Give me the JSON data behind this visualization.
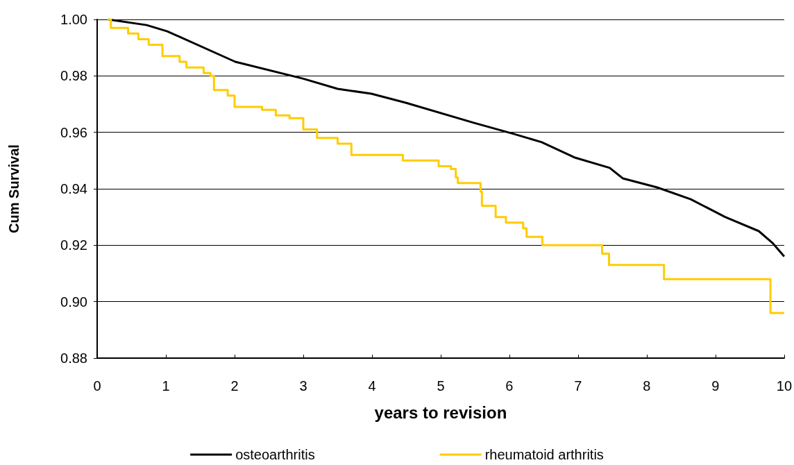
{
  "chart_data": {
    "type": "step",
    "xlabel": "years to revision",
    "ylabel": "Cum Survival",
    "xlim": [
      0,
      10
    ],
    "xticks": [
      0,
      1,
      2,
      3,
      4,
      5,
      6,
      7,
      8,
      9,
      10
    ],
    "ylim": [
      0.88,
      1.0
    ],
    "yticks": [
      {
        "value": 0.88,
        "label": "0.88"
      },
      {
        "value": 0.9,
        "label": "0.90"
      },
      {
        "value": 0.92,
        "label": "0.92"
      },
      {
        "value": 0.94,
        "label": "0.94"
      },
      {
        "value": 0.96,
        "label": "0.96"
      },
      {
        "value": 0.98,
        "label": "0.98"
      },
      {
        "value": 1.0,
        "label": "1.00"
      }
    ],
    "grid": "y",
    "legend": "bottom",
    "marker": "none",
    "line_style": "solid",
    "series": [
      {
        "name": "osteoarthritis",
        "type": "line",
        "color": "#000000",
        "x": [
          0.16,
          0.72,
          1.02,
          2.01,
          3.0,
          3.5,
          3.99,
          4.49,
          5.48,
          6.07,
          6.47,
          6.96,
          7.46,
          7.65,
          8.15,
          8.64,
          9.14,
          9.63,
          9.83,
          10.0
        ],
        "values": [
          1.0,
          0.998,
          0.9958,
          0.985,
          0.979,
          0.9754,
          0.9737,
          0.9705,
          0.9634,
          0.9594,
          0.9565,
          0.951,
          0.9474,
          0.9437,
          0.9405,
          0.9363,
          0.93,
          0.925,
          0.9208,
          0.916
        ]
      },
      {
        "name": "rheumatoid arthritis",
        "color": "#ffcc00",
        "x": [
          0.15,
          0.2,
          0.45,
          0.6,
          0.75,
          0.95,
          1.2,
          1.3,
          1.55,
          1.65,
          1.7,
          1.9,
          2.0,
          2.4,
          2.6,
          2.8,
          3.0,
          3.2,
          3.5,
          3.7,
          4.45,
          4.97,
          5.15,
          5.22,
          5.25,
          5.58,
          5.6,
          5.8,
          5.95,
          6.2,
          6.25,
          6.48,
          7.35,
          7.45,
          8.25,
          9.8,
          10.0
        ],
        "values": [
          1.0,
          0.997,
          0.995,
          0.993,
          0.991,
          0.987,
          0.985,
          0.983,
          0.981,
          0.98,
          0.975,
          0.973,
          0.969,
          0.968,
          0.966,
          0.965,
          0.961,
          0.958,
          0.956,
          0.952,
          0.95,
          0.948,
          0.947,
          0.944,
          0.942,
          0.939,
          0.934,
          0.93,
          0.928,
          0.926,
          0.923,
          0.92,
          0.917,
          0.913,
          0.908,
          0.896,
          0.896
        ]
      }
    ]
  }
}
